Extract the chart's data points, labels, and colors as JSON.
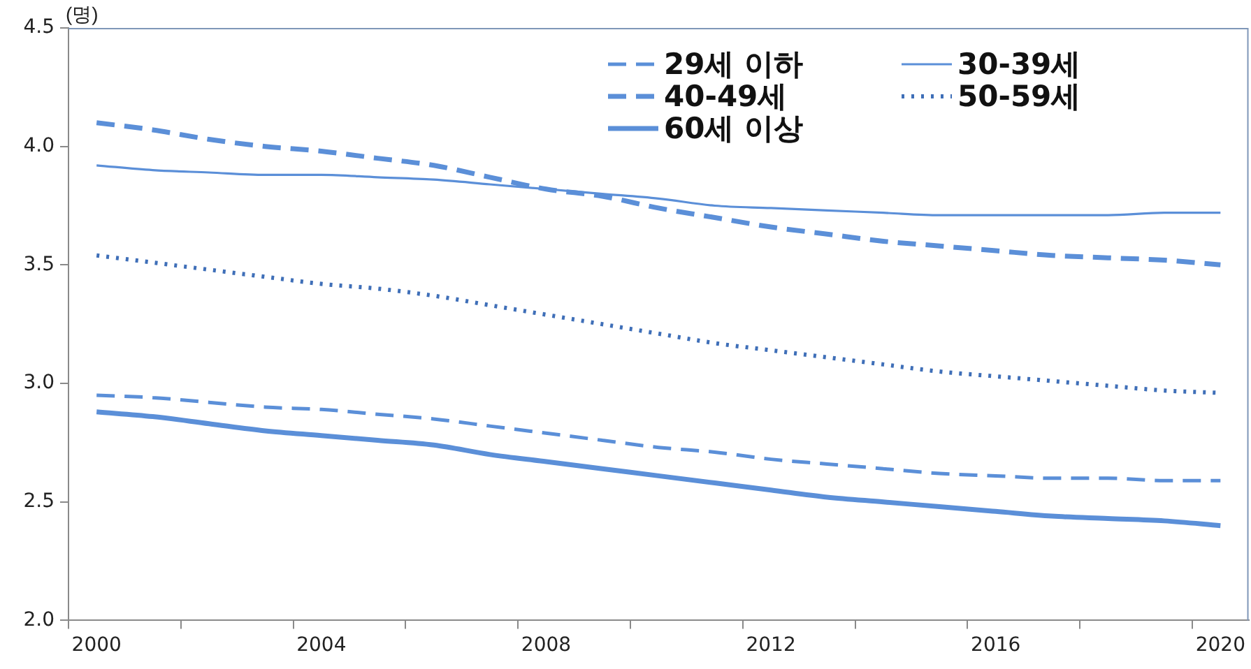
{
  "chart_data": {
    "type": "line",
    "ylabel": "(명)",
    "categories": [
      "2000",
      null,
      null,
      null,
      "2004",
      null,
      null,
      null,
      "2008",
      null,
      null,
      null,
      "2012",
      null,
      null,
      null,
      "2016",
      null,
      null,
      null,
      "2020"
    ],
    "ylim": [
      2,
      4.5
    ],
    "yticks": [
      {
        "value": 2,
        "label": "2.0"
      },
      {
        "value": 2.5,
        "label": "2.5"
      },
      {
        "value": 3,
        "label": "3.0"
      },
      {
        "value": 3.5,
        "label": "3.5"
      },
      {
        "value": 4,
        "label": "4.0"
      },
      {
        "value": 4.5,
        "label": "4.5"
      }
    ],
    "grid": false,
    "legend": "top right",
    "marker": "none",
    "series": [
      {
        "name": "29세 이하",
        "color": "#5b8fd8",
        "line_style": "dashed",
        "values": [
          2.95,
          2.94,
          2.92,
          2.9,
          2.89,
          2.87,
          2.85,
          2.82,
          2.79,
          2.76,
          2.73,
          2.71,
          2.68,
          2.66,
          2.64,
          2.62,
          2.61,
          2.6,
          2.6,
          2.59,
          2.59
        ]
      },
      {
        "name": "30-39세",
        "color": "#5b8fd8",
        "line_style": "solid",
        "values": [
          3.92,
          3.9,
          3.89,
          3.88,
          3.88,
          3.87,
          3.86,
          3.84,
          3.82,
          3.8,
          3.78,
          3.75,
          3.74,
          3.73,
          3.72,
          3.71,
          3.71,
          3.71,
          3.71,
          3.72,
          3.72
        ]
      },
      {
        "name": "40-49세",
        "color": "#5b8fd8",
        "line_style": "dashed",
        "values": [
          4.1,
          4.07,
          4.03,
          4.0,
          3.98,
          3.95,
          3.92,
          3.87,
          3.82,
          3.79,
          3.74,
          3.7,
          3.66,
          3.63,
          3.6,
          3.58,
          3.56,
          3.54,
          3.53,
          3.52,
          3.5
        ]
      },
      {
        "name": "50-59세",
        "color": "#3f6fb8",
        "line_style": "dotted",
        "values": [
          3.54,
          3.51,
          3.48,
          3.45,
          3.42,
          3.4,
          3.37,
          3.33,
          3.29,
          3.25,
          3.21,
          3.17,
          3.14,
          3.11,
          3.08,
          3.05,
          3.03,
          3.01,
          2.99,
          2.97,
          2.96
        ]
      },
      {
        "name": "60세 이상",
        "color": "#5b8fd8",
        "line_style": "solid",
        "values": [
          2.88,
          2.86,
          2.83,
          2.8,
          2.78,
          2.76,
          2.74,
          2.7,
          2.67,
          2.64,
          2.61,
          2.58,
          2.55,
          2.52,
          2.5,
          2.48,
          2.46,
          2.44,
          2.43,
          2.42,
          2.4
        ]
      }
    ]
  }
}
